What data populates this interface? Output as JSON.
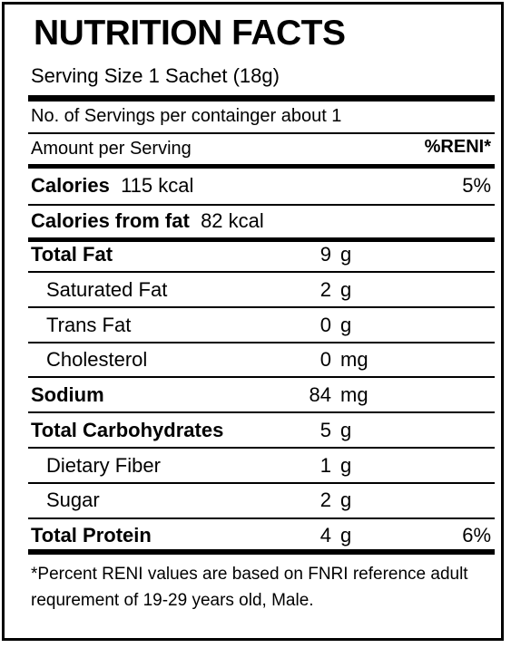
{
  "title": "NUTRITION FACTS",
  "serving_size": "Serving Size 1 Sachet (18g)",
  "servings_per_container": "No. of Servings per containger about 1",
  "amount_per_serving": "Amount per Serving",
  "reni_header": "%RENI*",
  "calories": {
    "label": "Calories",
    "value": "115 kcal",
    "pct": "5%"
  },
  "calories_from_fat": {
    "label": "Calories from fat",
    "value": "82 kcal"
  },
  "nutrients": [
    {
      "label": "Total Fat",
      "amount": "9",
      "unit": "g",
      "bold": true,
      "indent": false,
      "pct": ""
    },
    {
      "label": "Saturated Fat",
      "amount": "2",
      "unit": "g",
      "bold": false,
      "indent": true,
      "pct": ""
    },
    {
      "label": "Trans Fat",
      "amount": "0",
      "unit": "g",
      "bold": false,
      "indent": true,
      "pct": ""
    },
    {
      "label": "Cholesterol",
      "amount": "0",
      "unit": "mg",
      "bold": false,
      "indent": true,
      "pct": ""
    },
    {
      "label": "Sodium",
      "amount": "84",
      "unit": "mg",
      "bold": true,
      "indent": false,
      "pct": ""
    },
    {
      "label": "Total Carbohydrates",
      "amount": "5",
      "unit": "g",
      "bold": true,
      "indent": false,
      "pct": ""
    },
    {
      "label": "Dietary Fiber",
      "amount": "1",
      "unit": "g",
      "bold": false,
      "indent": true,
      "pct": ""
    },
    {
      "label": "Sugar",
      "amount": "2",
      "unit": "g",
      "bold": false,
      "indent": true,
      "pct": ""
    },
    {
      "label": "Total Protein",
      "amount": "4",
      "unit": "g",
      "bold": true,
      "indent": false,
      "pct": "6%"
    }
  ],
  "footnote": "*Percent RENI values are based on FNRI reference adult requrement of 19-29 years old, Male."
}
